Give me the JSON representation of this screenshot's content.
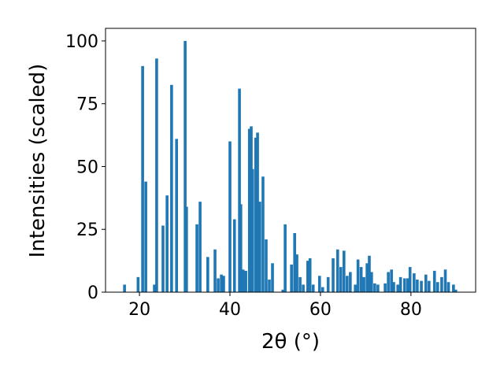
{
  "chart_data": {
    "type": "bar",
    "xlabel": "2θ (°)",
    "ylabel": "Intensities (scaled)",
    "color": "#1f77b4",
    "x": [
      16.7,
      19.7,
      20.7,
      21.4,
      23.3,
      23.8,
      25.2,
      26.1,
      27.1,
      28.2,
      30.1,
      30.4,
      32.7,
      33.4,
      35.1,
      36.7,
      37.4,
      38.1,
      38.6,
      40.0,
      41.0,
      42.1,
      42.4,
      42.9,
      43.5,
      44.3,
      44.7,
      45.0,
      45.7,
      46.1,
      46.6,
      47.3,
      48.0,
      48.7,
      49.4,
      51.7,
      52.2,
      53.6,
      54.3,
      54.8,
      55.5,
      56.2,
      57.2,
      57.7,
      58.4,
      59.8,
      60.5,
      61.7,
      62.8,
      63.8,
      64.5,
      65.2,
      65.9,
      66.6,
      67.7,
      68.3,
      69.0,
      69.6,
      70.3,
      70.8,
      71.3,
      72.0,
      72.7,
      74.3,
      75.0,
      75.7,
      76.2,
      77.1,
      77.7,
      78.6,
      79.3,
      79.8,
      80.7,
      81.4,
      82.3,
      83.3,
      84.0,
      85.2,
      85.9,
      86.8,
      87.6,
      88.3,
      89.4,
      89.9
    ],
    "values": [
      3,
      6,
      90,
      44,
      3,
      93,
      26.5,
      38.5,
      82.5,
      61,
      100,
      34,
      27,
      36,
      14,
      17,
      5.5,
      7,
      6.5,
      60,
      29,
      81,
      35,
      9,
      8.5,
      65,
      66,
      49,
      61.5,
      63.5,
      36,
      46,
      21,
      5,
      11.5,
      1,
      27,
      11,
      23.5,
      15,
      6,
      3,
      12.5,
      13.5,
      3,
      6.5,
      2,
      6,
      13.5,
      17,
      10,
      16.5,
      6.5,
      8,
      3,
      13,
      10,
      6,
      11.5,
      14.5,
      8,
      3.5,
      3,
      3.5,
      8,
      9,
      4,
      3,
      6,
      5.5,
      5.5,
      10,
      7.5,
      5,
      4.5,
      7,
      4.5,
      8.5,
      4,
      6,
      9,
      4,
      3,
      1
    ],
    "xlim": [
      12.5,
      94.3
    ],
    "ylim": [
      0,
      105
    ],
    "xticks": [
      20,
      40,
      60,
      80
    ],
    "yticks": [
      0,
      25,
      50,
      75,
      100
    ]
  }
}
